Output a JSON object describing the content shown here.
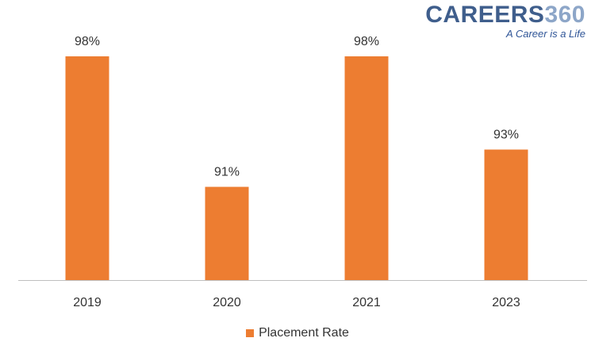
{
  "logo": {
    "word": "CAREERS",
    "number": "360",
    "tagline": "A Career is a Life"
  },
  "colors": {
    "bar": "#ED7D31",
    "axis": "#BFBFBF",
    "text": "#333333",
    "logo_word": "#3F5E8C",
    "logo_number": "#8DA6C8",
    "logo_tagline": "#2F5597"
  },
  "chart_data": {
    "type": "bar",
    "title": "",
    "xlabel": "",
    "ylabel": "",
    "categories": [
      "2019",
      "2020",
      "2021",
      "2023"
    ],
    "series": [
      {
        "name": "Placement Rate",
        "values": [
          98,
          91,
          98,
          93
        ],
        "labels": [
          "98%",
          "91%",
          "98%",
          "93%"
        ]
      }
    ],
    "ylim": [
      86,
      98
    ],
    "grid": false,
    "y_axis_visible": false,
    "legend": "bottom-center"
  }
}
